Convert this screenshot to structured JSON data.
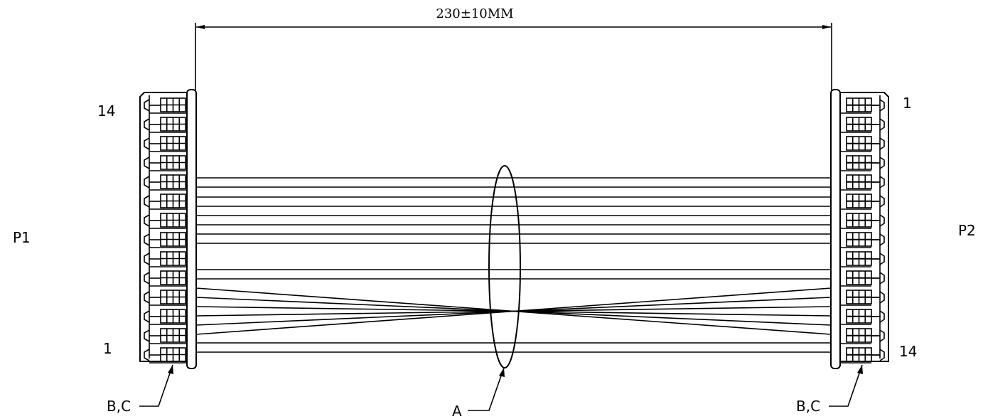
{
  "dimension": {
    "text": "230±10MM"
  },
  "connectors": {
    "p1": {
      "label": "P1",
      "pin_top": "14",
      "pin_bottom": "1",
      "callout": "B,C"
    },
    "p2": {
      "label": "P2",
      "pin_top": "1",
      "pin_bottom": "14",
      "callout": "B,C"
    }
  },
  "cable": {
    "callout": "A"
  },
  "colors": {
    "line": "#000000",
    "background": "#ffffff"
  }
}
